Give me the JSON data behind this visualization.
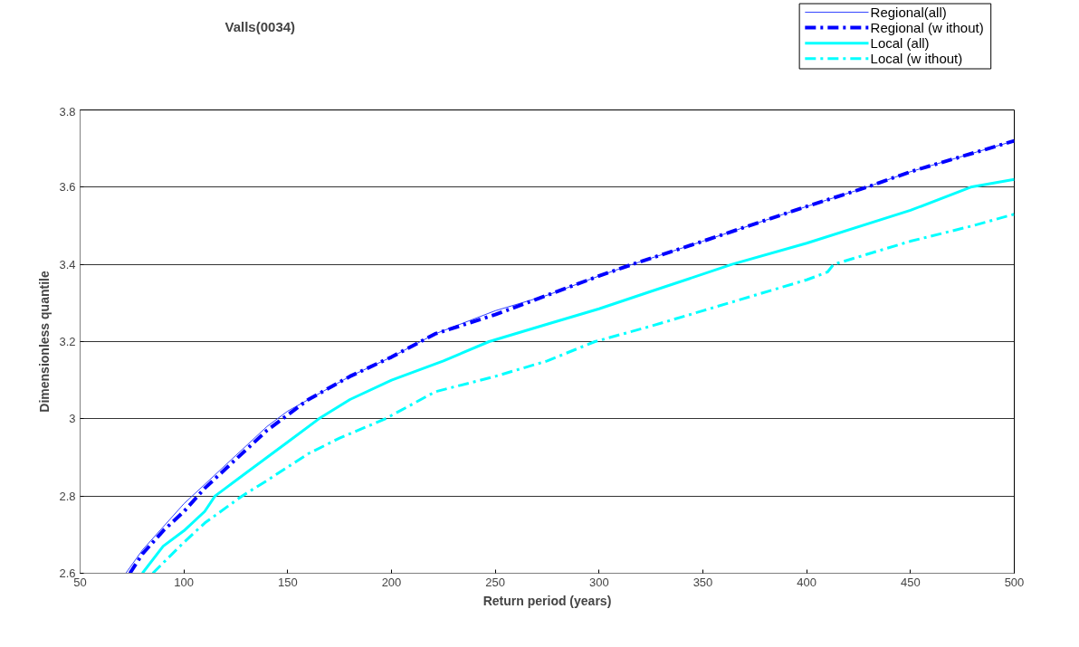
{
  "chart_data": {
    "type": "line",
    "title": "Valls(0034)",
    "xlabel": "Return period (years)",
    "ylabel": "Dimensionless quantile",
    "xlim": [
      50,
      500
    ],
    "xticks": [
      50,
      100,
      150,
      200,
      250,
      300,
      350,
      400,
      450,
      500
    ],
    "ylim": [
      2.6,
      3.8
    ],
    "yticks": [
      2.6,
      {
        "value": 2.8,
        "label": "2.8"
      },
      3,
      {
        "value": 3.2,
        "label": "3.2"
      },
      {
        "value": 3.4,
        "label": "3.4"
      },
      {
        "value": 3.6,
        "label": "3.6"
      },
      {
        "value": 3.8,
        "label": "3.8"
      }
    ],
    "grid": "y",
    "legend": "top right",
    "marker": "none",
    "series": [
      {
        "name": "Regional(all)",
        "color": "#3344ff",
        "line_style": "solid",
        "x": [
          72,
          80,
          90,
          100,
          110,
          120,
          130,
          140,
          150,
          160,
          180,
          200,
          221,
          250,
          275,
          300,
          316,
          350,
          400,
          429,
          450,
          500
        ],
        "values": [
          2.6,
          2.66,
          2.72,
          2.78,
          2.83,
          2.88,
          2.93,
          2.98,
          3.02,
          3.05,
          3.11,
          3.16,
          3.22,
          3.28,
          3.32,
          3.37,
          3.4,
          3.46,
          3.55,
          3.6,
          3.64,
          3.72
        ]
      },
      {
        "name": "Regional (w ithout)",
        "color": "#0000ff",
        "line_style": "dashed",
        "x": [
          74,
          80,
          90,
          100,
          110,
          120,
          130,
          140,
          150,
          160,
          180,
          200,
          221,
          250,
          275,
          300,
          316,
          350,
          400,
          429,
          450,
          500
        ],
        "values": [
          2.6,
          2.65,
          2.71,
          2.76,
          2.82,
          2.87,
          2.92,
          2.97,
          3.01,
          3.05,
          3.11,
          3.16,
          3.22,
          3.27,
          3.32,
          3.37,
          3.4,
          3.46,
          3.55,
          3.6,
          3.64,
          3.72
        ]
      },
      {
        "name": "Local (all)",
        "color": "#00ffff",
        "line_style": "solid",
        "x": [
          80,
          90,
          100,
          110,
          115,
          120,
          130,
          140,
          150,
          165,
          180,
          200,
          225,
          247,
          275,
          300,
          325,
          364,
          400,
          450,
          479,
          500
        ],
        "values": [
          2.6,
          2.67,
          2.71,
          2.76,
          2.8,
          2.82,
          2.86,
          2.9,
          2.94,
          3.0,
          3.05,
          3.1,
          3.15,
          3.2,
          3.245,
          3.285,
          3.33,
          3.4,
          3.455,
          3.54,
          3.6,
          3.62
        ]
      },
      {
        "name": "Local (w ithout)",
        "color": "#00ffff",
        "line_style": "dashed",
        "x": [
          85,
          100,
          110,
          128,
          140,
          160,
          175,
          197,
          221,
          250,
          275,
          298,
          325,
          350,
          375,
          400,
          410,
          413,
          450,
          480,
          500
        ],
        "values": [
          2.6,
          2.68,
          2.73,
          2.8,
          2.84,
          2.91,
          2.95,
          3.0,
          3.07,
          3.11,
          3.15,
          3.2,
          3.24,
          3.28,
          3.32,
          3.36,
          3.38,
          3.4,
          3.46,
          3.5,
          3.53
        ]
      }
    ]
  }
}
